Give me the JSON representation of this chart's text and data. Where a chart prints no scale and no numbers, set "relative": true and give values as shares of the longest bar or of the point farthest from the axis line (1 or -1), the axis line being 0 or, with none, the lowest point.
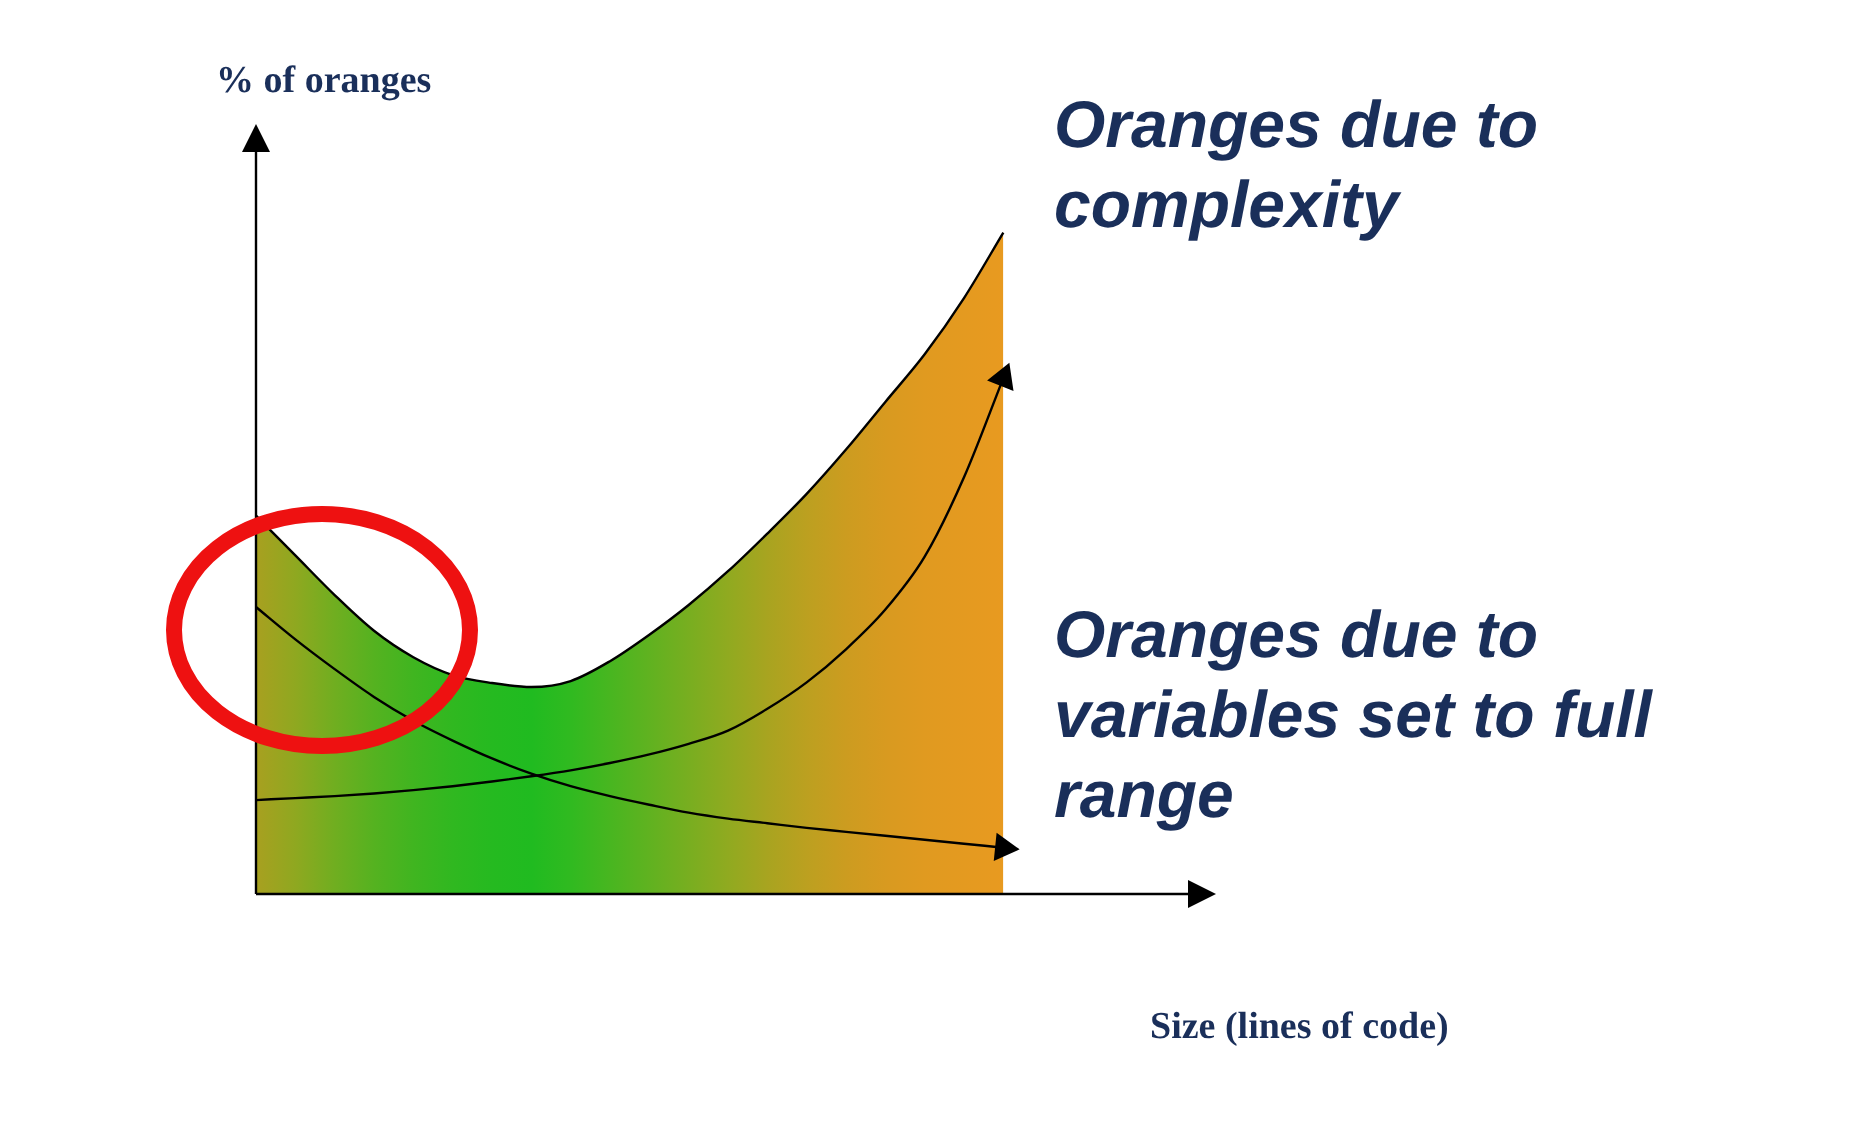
{
  "chart_data": {
    "type": "line",
    "relative": true,
    "xlabel": "Size (lines of code)",
    "ylabel": "% of oranges",
    "legend": false,
    "marker": "none",
    "categories": [
      null,
      null,
      null,
      null,
      null,
      null,
      null,
      null,
      null,
      null,
      null,
      null,
      null,
      null,
      null,
      null,
      null,
      null,
      null,
      null,
      null,
      null,
      null,
      null,
      null
    ],
    "series": [
      {
        "type": "area",
        "color": "#000000",
        "colors": [
          "#a8a020",
          "#8fa820",
          "#70ae20",
          "#55b220",
          "#40b520",
          "#30b820",
          "#25ba20",
          "#20bb20",
          "#30ba20",
          "#48b620",
          "#60b220",
          "#78ae20",
          "#90aa20",
          "#a8a420",
          "#bca020",
          "#cc9c20",
          "#d89a20",
          "#e09a20",
          "#e49a20",
          "#e89a20",
          null,
          null,
          null,
          null,
          null
        ],
        "values": [
          0.572,
          0.512,
          0.452,
          0.398,
          0.358,
          0.331,
          0.319,
          0.313,
          0.322,
          0.352,
          0.392,
          0.437,
          0.488,
          0.545,
          0.605,
          0.672,
          0.744,
          0.816,
          0.901,
          1,
          null,
          null,
          null,
          null,
          null
        ]
      },
      {
        "type": "line",
        "name": "Oranges due to complexity",
        "color": "#000000",
        "values": [
          0.142,
          0.145,
          0.148,
          0.152,
          0.157,
          0.163,
          0.17,
          0.178,
          0.187,
          0.198,
          0.211,
          0.227,
          0.247,
          0.28,
          0.32,
          0.37,
          0.43,
          0.51,
          0.63,
          0.78,
          null,
          null,
          null,
          null,
          null
        ]
      },
      {
        "type": "line",
        "name": "Oranges due to variables set to full range",
        "color": "#000000",
        "values": [
          0.434,
          0.385,
          0.34,
          0.298,
          0.262,
          0.232,
          0.205,
          0.182,
          0.163,
          0.148,
          0.135,
          0.123,
          0.114,
          0.107,
          0.1,
          0.094,
          0.088,
          0.082,
          0.076,
          0.07,
          null,
          null,
          null,
          null,
          null
        ]
      }
    ]
  }
}
